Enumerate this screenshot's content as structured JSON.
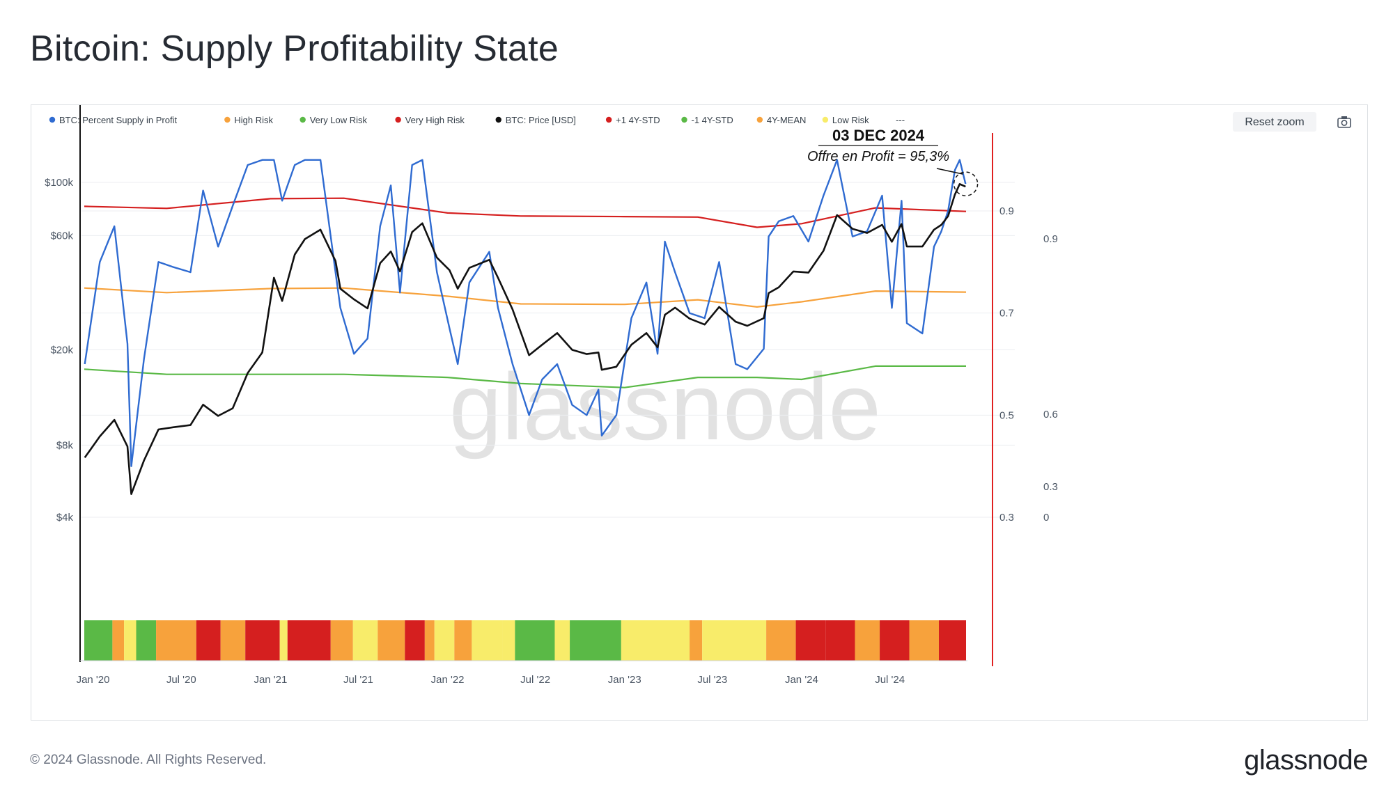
{
  "title": "Bitcoin: Supply Profitability State",
  "footer": {
    "copyright": "© 2024 Glassnode. All Rights Reserved.",
    "logo_text": "glassnode",
    "watermark": "glassnode"
  },
  "toolbar": {
    "reset_zoom_label": "Reset zoom",
    "camera_icon": "camera-icon"
  },
  "chart_data": {
    "type": "line",
    "title": "Bitcoin: Supply Profitability State",
    "legend": [
      {
        "name": "BTC: Percent Supply in Profit",
        "color": "#2f6bd1"
      },
      {
        "name": "High Risk",
        "color": "#f7a23c"
      },
      {
        "name": "Very Low Risk",
        "color": "#5ab946"
      },
      {
        "name": "Very High Risk",
        "color": "#d51f1f"
      },
      {
        "name": "BTC: Price [USD]",
        "color": "#111111"
      },
      {
        "name": "+1 4Y-STD",
        "color": "#d51f1f"
      },
      {
        "name": "-1 4Y-STD",
        "color": "#5ab946"
      },
      {
        "name": "4Y-MEAN",
        "color": "#f7a23c"
      },
      {
        "name": "Low Risk",
        "color": "#f8ec6a"
      },
      {
        "name": "---",
        "color": ""
      }
    ],
    "x_ticks": [
      "Jan '20",
      "Jul '20",
      "Jan '21",
      "Jul '21",
      "Jan '22",
      "Jul '22",
      "Jan '23",
      "Jul '23",
      "Jan '24",
      "Jul '24"
    ],
    "x_range": [
      "2019-12-14",
      "2024-12-05"
    ],
    "y_left": {
      "label": "",
      "scale": "log",
      "ticks": [
        "$4k",
        "$8k",
        "$20k",
        "$60k",
        "$100k"
      ],
      "tick_values": [
        4000,
        8000,
        20000,
        60000,
        100000
      ]
    },
    "y_right_1": {
      "label": "",
      "ticks": [
        "0.3",
        "0.5",
        "0.7",
        "0.9"
      ],
      "tick_values": [
        0.3,
        0.5,
        0.7,
        0.9
      ]
    },
    "y_right_2": {
      "label": "",
      "ticks": [
        "0",
        "0.3",
        "0.6",
        "0.9"
      ],
      "tick_values": [
        0,
        0.3,
        0.6,
        0.9
      ]
    },
    "series": [
      {
        "name": "BTC: Price [USD]",
        "axis": "left",
        "color": "#111111",
        "x": [
          "2019-12-15",
          "2020-01-15",
          "2020-02-14",
          "2020-03-12",
          "2020-03-20",
          "2020-04-15",
          "2020-05-15",
          "2020-06-15",
          "2020-07-20",
          "2020-08-15",
          "2020-09-15",
          "2020-10-15",
          "2020-11-15",
          "2020-12-15",
          "2021-01-08",
          "2021-01-25",
          "2021-02-20",
          "2021-03-13",
          "2021-04-14",
          "2021-05-15",
          "2021-05-25",
          "2021-06-22",
          "2021-07-20",
          "2021-08-15",
          "2021-09-06",
          "2021-09-25",
          "2021-10-20",
          "2021-11-10",
          "2021-12-10",
          "2022-01-05",
          "2022-01-22",
          "2022-02-15",
          "2022-03-28",
          "2022-04-15",
          "2022-05-15",
          "2022-06-18",
          "2022-07-15",
          "2022-08-15",
          "2022-09-15",
          "2022-10-15",
          "2022-11-08",
          "2022-11-15",
          "2022-12-15",
          "2023-01-15",
          "2023-02-15",
          "2023-03-10",
          "2023-03-25",
          "2023-04-15",
          "2023-05-15",
          "2023-06-15",
          "2023-07-15",
          "2023-08-18",
          "2023-09-11",
          "2023-10-15",
          "2023-10-25",
          "2023-11-15",
          "2023-12-15",
          "2024-01-15",
          "2024-02-15",
          "2024-03-14",
          "2024-04-15",
          "2024-05-15",
          "2024-06-15",
          "2024-07-05",
          "2024-07-25",
          "2024-08-05",
          "2024-09-06",
          "2024-09-30",
          "2024-10-15",
          "2024-10-29",
          "2024-11-12",
          "2024-11-22",
          "2024-12-04"
        ],
        "values": [
          7100,
          8700,
          10200,
          7900,
          5000,
          6900,
          9300,
          9500,
          9700,
          11800,
          10600,
          11400,
          16000,
          19500,
          40000,
          32000,
          50000,
          58000,
          63500,
          47000,
          36000,
          32500,
          29800,
          46000,
          51500,
          42500,
          62000,
          67500,
          48500,
          43000,
          36000,
          44000,
          47500,
          40000,
          29500,
          19000,
          21000,
          23500,
          20000,
          19200,
          19500,
          16500,
          17000,
          21000,
          23500,
          20500,
          28000,
          30000,
          27000,
          25500,
          30200,
          26200,
          25200,
          27100,
          34500,
          36500,
          42500,
          42000,
          51800,
          73000,
          64000,
          61500,
          66500,
          56500,
          67000,
          54000,
          54000,
          63500,
          66500,
          72300,
          89000,
          98500,
          96000
        ]
      },
      {
        "name": "BTC: Percent Supply in Profit",
        "axis": "right_1",
        "color": "#2f6bd1",
        "x": [
          "2019-12-15",
          "2020-01-15",
          "2020-02-14",
          "2020-03-12",
          "2020-03-20",
          "2020-04-15",
          "2020-05-15",
          "2020-06-15",
          "2020-07-20",
          "2020-08-15",
          "2020-09-15",
          "2020-10-15",
          "2020-11-15",
          "2020-12-15",
          "2021-01-08",
          "2021-01-25",
          "2021-02-20",
          "2021-03-13",
          "2021-04-14",
          "2021-05-15",
          "2021-05-25",
          "2021-06-22",
          "2021-07-20",
          "2021-08-15",
          "2021-09-06",
          "2021-09-25",
          "2021-10-20",
          "2021-11-10",
          "2021-12-10",
          "2022-01-05",
          "2022-01-22",
          "2022-02-15",
          "2022-03-28",
          "2022-04-15",
          "2022-05-15",
          "2022-06-18",
          "2022-07-15",
          "2022-08-15",
          "2022-09-15",
          "2022-10-15",
          "2022-11-08",
          "2022-11-15",
          "2022-12-15",
          "2023-01-15",
          "2023-02-15",
          "2023-03-10",
          "2023-03-25",
          "2023-04-15",
          "2023-05-15",
          "2023-06-15",
          "2023-07-15",
          "2023-08-18",
          "2023-09-11",
          "2023-10-15",
          "2023-10-25",
          "2023-11-15",
          "2023-12-15",
          "2024-01-15",
          "2024-02-15",
          "2024-03-14",
          "2024-04-15",
          "2024-05-15",
          "2024-06-15",
          "2024-07-05",
          "2024-07-25",
          "2024-08-05",
          "2024-09-06",
          "2024-09-30",
          "2024-10-15",
          "2024-10-29",
          "2024-11-12",
          "2024-11-22",
          "2024-12-04"
        ],
        "values": [
          0.6,
          0.8,
          0.87,
          0.64,
          0.4,
          0.61,
          0.8,
          0.79,
          0.78,
          0.94,
          0.83,
          0.91,
          0.99,
          1.0,
          1.0,
          0.92,
          0.99,
          1.0,
          1.0,
          0.78,
          0.71,
          0.62,
          0.65,
          0.87,
          0.95,
          0.74,
          0.99,
          1.0,
          0.78,
          0.67,
          0.6,
          0.76,
          0.82,
          0.71,
          0.6,
          0.5,
          0.57,
          0.6,
          0.52,
          0.5,
          0.55,
          0.46,
          0.5,
          0.69,
          0.76,
          0.62,
          0.84,
          0.78,
          0.7,
          0.69,
          0.8,
          0.6,
          0.59,
          0.63,
          0.85,
          0.88,
          0.89,
          0.84,
          0.93,
          1.0,
          0.85,
          0.86,
          0.93,
          0.71,
          0.92,
          0.68,
          0.66,
          0.83,
          0.86,
          0.9,
          0.98,
          1.0,
          0.953
        ]
      },
      {
        "name": "+1 4Y-STD",
        "axis": "right_1",
        "color": "#d51f1f",
        "x": [
          "2019-12-14",
          "2020-06-01",
          "2021-01-01",
          "2021-06-01",
          "2022-01-01",
          "2022-06-01",
          "2023-01-01",
          "2023-06-01",
          "2023-10-01",
          "2024-01-01",
          "2024-06-01",
          "2024-12-05"
        ],
        "values": [
          0.909,
          0.905,
          0.924,
          0.925,
          0.896,
          0.89,
          0.889,
          0.888,
          0.868,
          0.875,
          0.906,
          0.899
        ]
      },
      {
        "name": "4Y-MEAN",
        "axis": "right_1",
        "color": "#f7a23c",
        "x": [
          "2019-12-14",
          "2020-06-01",
          "2021-01-01",
          "2021-06-01",
          "2022-01-01",
          "2022-06-01",
          "2023-01-01",
          "2023-06-01",
          "2023-10-01",
          "2024-01-01",
          "2024-06-01",
          "2024-12-05"
        ],
        "values": [
          0.749,
          0.74,
          0.748,
          0.749,
          0.733,
          0.718,
          0.717,
          0.726,
          0.712,
          0.722,
          0.743,
          0.741
        ]
      },
      {
        "name": "-1 4Y-STD",
        "axis": "right_1",
        "color": "#5ab946",
        "x": [
          "2019-12-14",
          "2020-06-01",
          "2021-01-01",
          "2021-06-01",
          "2022-01-01",
          "2022-06-01",
          "2023-01-01",
          "2023-06-01",
          "2023-10-01",
          "2024-01-01",
          "2024-06-01",
          "2024-12-05"
        ],
        "values": [
          0.59,
          0.58,
          0.58,
          0.58,
          0.574,
          0.562,
          0.554,
          0.574,
          0.574,
          0.57,
          0.596,
          0.596
        ]
      }
    ],
    "risk_bands": [
      {
        "from": "2019-12-14",
        "to": "2020-02-10",
        "state": "Very Low Risk",
        "color": "#5ab946"
      },
      {
        "from": "2020-02-10",
        "to": "2020-03-05",
        "state": "High Risk",
        "color": "#f7a23c"
      },
      {
        "from": "2020-03-05",
        "to": "2020-03-30",
        "state": "Low Risk",
        "color": "#f8ec6a"
      },
      {
        "from": "2020-03-30",
        "to": "2020-05-10",
        "state": "Very Low Risk",
        "color": "#5ab946"
      },
      {
        "from": "2020-05-10",
        "to": "2020-08-01",
        "state": "High Risk",
        "color": "#f7a23c"
      },
      {
        "from": "2020-08-01",
        "to": "2020-09-20",
        "state": "Very High Risk",
        "color": "#d51f1f"
      },
      {
        "from": "2020-09-20",
        "to": "2020-11-10",
        "state": "High Risk",
        "color": "#f7a23c"
      },
      {
        "from": "2020-11-10",
        "to": "2021-01-20",
        "state": "Very High Risk",
        "color": "#d51f1f"
      },
      {
        "from": "2021-01-20",
        "to": "2021-02-05",
        "state": "Low Risk",
        "color": "#f8ec6a"
      },
      {
        "from": "2021-02-05",
        "to": "2021-05-05",
        "state": "Very High Risk",
        "color": "#d51f1f"
      },
      {
        "from": "2021-05-05",
        "to": "2021-06-20",
        "state": "High Risk",
        "color": "#f7a23c"
      },
      {
        "from": "2021-06-20",
        "to": "2021-08-10",
        "state": "Low Risk",
        "color": "#f8ec6a"
      },
      {
        "from": "2021-08-10",
        "to": "2021-10-05",
        "state": "High Risk",
        "color": "#f7a23c"
      },
      {
        "from": "2021-10-05",
        "to": "2021-11-15",
        "state": "Very High Risk",
        "color": "#d51f1f"
      },
      {
        "from": "2021-11-15",
        "to": "2021-12-05",
        "state": "High Risk",
        "color": "#f7a23c"
      },
      {
        "from": "2021-12-05",
        "to": "2022-01-15",
        "state": "Low Risk",
        "color": "#f8ec6a"
      },
      {
        "from": "2022-01-15",
        "to": "2022-02-20",
        "state": "High Risk",
        "color": "#f7a23c"
      },
      {
        "from": "2022-02-20",
        "to": "2022-04-25",
        "state": "Low Risk",
        "color": "#f8ec6a"
      },
      {
        "from": "2022-04-25",
        "to": "2022-05-20",
        "state": "Low Risk",
        "color": "#f8ec6a"
      },
      {
        "from": "2022-05-20",
        "to": "2022-08-10",
        "state": "Very Low Risk",
        "color": "#5ab946"
      },
      {
        "from": "2022-08-10",
        "to": "2022-09-10",
        "state": "Low Risk",
        "color": "#f8ec6a"
      },
      {
        "from": "2022-09-10",
        "to": "2022-12-25",
        "state": "Very Low Risk",
        "color": "#5ab946"
      },
      {
        "from": "2022-12-25",
        "to": "2023-05-15",
        "state": "Low Risk",
        "color": "#f8ec6a"
      },
      {
        "from": "2023-05-15",
        "to": "2023-06-10",
        "state": "High Risk",
        "color": "#f7a23c"
      },
      {
        "from": "2023-06-10",
        "to": "2023-10-20",
        "state": "Low Risk",
        "color": "#f8ec6a"
      },
      {
        "from": "2023-10-20",
        "to": "2023-12-20",
        "state": "High Risk",
        "color": "#f7a23c"
      },
      {
        "from": "2023-12-20",
        "to": "2024-02-20",
        "state": "Very High Risk",
        "color": "#d51f1f"
      },
      {
        "from": "2024-02-20",
        "to": "2024-04-20",
        "state": "Very High Risk",
        "color": "#d51f1f"
      },
      {
        "from": "2024-04-20",
        "to": "2024-06-10",
        "state": "High Risk",
        "color": "#f7a23c"
      },
      {
        "from": "2024-06-10",
        "to": "2024-08-10",
        "state": "Very High Risk",
        "color": "#d51f1f"
      },
      {
        "from": "2024-08-10",
        "to": "2024-10-10",
        "state": "High Risk",
        "color": "#f7a23c"
      },
      {
        "from": "2024-10-10",
        "to": "2024-12-05",
        "state": "Very High Risk",
        "color": "#d51f1f"
      }
    ],
    "annotation": {
      "date_label": "03 DEC 2024",
      "text": "Offre en Profit = 95,3%",
      "x": "2024-12-03",
      "value": 0.953
    },
    "grid": true,
    "legend_position": "top-left"
  }
}
